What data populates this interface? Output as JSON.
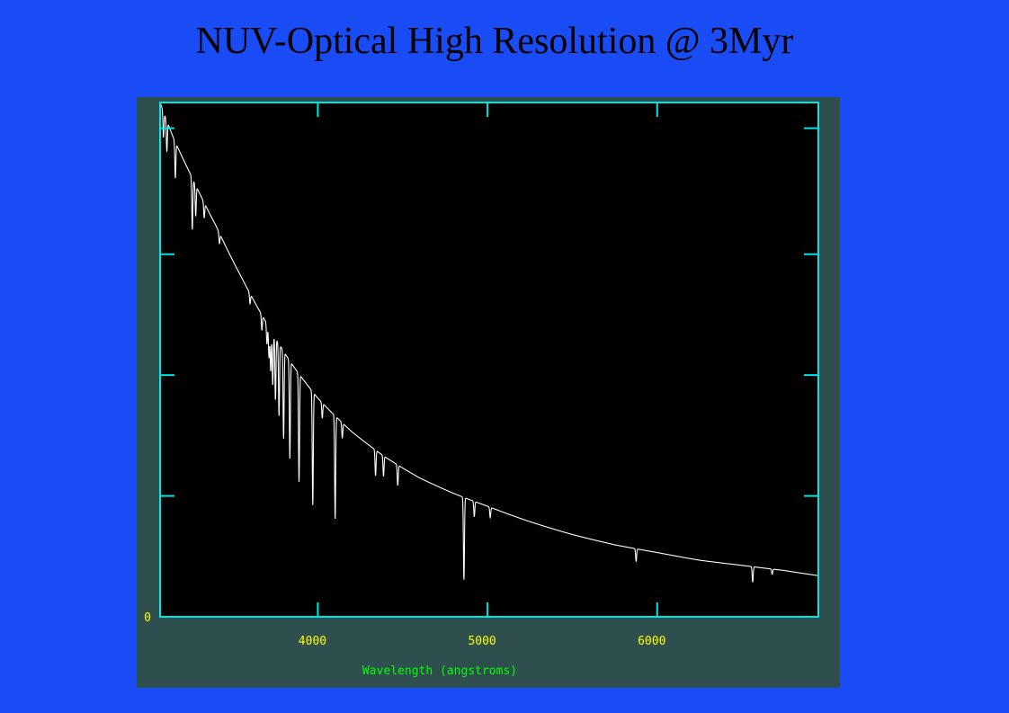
{
  "slide": {
    "title": "NUV-Optical High Resolution @ 3Myr"
  },
  "colors": {
    "background": "#1a4cf5",
    "panel": "#2f4f4f",
    "plot_area": "#000000",
    "frame": "#00e5e5",
    "spectrum": "#ffffff",
    "tick_labels": "#ffff00",
    "axis_label": "#00ff00"
  },
  "chart_data": {
    "type": "line",
    "title": "",
    "xlabel": "Wavelength (angstroms)",
    "ylabel": "",
    "xlim": [
      3070,
      6950
    ],
    "ylim": [
      0,
      1.0
    ],
    "x_ticks": [
      4000,
      5000,
      6000
    ],
    "x_tick_labels": [
      "4000",
      "5000",
      "6000"
    ],
    "y_tick_labels": [
      {
        "value": 0,
        "label": "0"
      }
    ],
    "y_minor_ticks": [
      0.235,
      0.47,
      0.705,
      0.95
    ],
    "grid": false,
    "legend": "none",
    "series": [
      {
        "continuum": [
          [
            3070,
            1.0
          ],
          [
            3150,
            0.93
          ],
          [
            3250,
            0.86
          ],
          [
            3400,
            0.76
          ],
          [
            3550,
            0.66
          ],
          [
            3700,
            0.57
          ],
          [
            3850,
            0.49
          ],
          [
            4000,
            0.425
          ],
          [
            4200,
            0.36
          ],
          [
            4400,
            0.31
          ],
          [
            4600,
            0.27
          ],
          [
            4800,
            0.24
          ],
          [
            5000,
            0.215
          ],
          [
            5250,
            0.185
          ],
          [
            5500,
            0.16
          ],
          [
            5750,
            0.14
          ],
          [
            6000,
            0.125
          ],
          [
            6250,
            0.11
          ],
          [
            6500,
            0.1
          ],
          [
            6750,
            0.09
          ],
          [
            6950,
            0.08
          ]
        ],
        "absorption_lines": [
          {
            "x": 3090,
            "depth": 0.05
          },
          {
            "x": 3110,
            "depth": 0.06
          },
          {
            "x": 3160,
            "depth": 0.07
          },
          {
            "x": 3260,
            "depth": 0.1
          },
          {
            "x": 3280,
            "depth": 0.06
          },
          {
            "x": 3330,
            "depth": 0.03
          },
          {
            "x": 3420,
            "depth": 0.02
          },
          {
            "x": 3600,
            "depth": 0.02
          },
          {
            "x": 3670,
            "depth": 0.03
          },
          {
            "x": 3700,
            "depth": 0.04
          },
          {
            "x": 3712,
            "depth": 0.06
          },
          {
            "x": 3722,
            "depth": 0.08
          },
          {
            "x": 3734,
            "depth": 0.1
          },
          {
            "x": 3750,
            "depth": 0.12
          },
          {
            "x": 3771,
            "depth": 0.14
          },
          {
            "x": 3798,
            "depth": 0.17
          },
          {
            "x": 3835,
            "depth": 0.19
          },
          {
            "x": 3889,
            "depth": 0.21
          },
          {
            "x": 3970,
            "depth": 0.22
          },
          {
            "x": 4026,
            "depth": 0.03
          },
          {
            "x": 4102,
            "depth": 0.2
          },
          {
            "x": 4144,
            "depth": 0.03
          },
          {
            "x": 4340,
            "depth": 0.05
          },
          {
            "x": 4387,
            "depth": 0.04
          },
          {
            "x": 4471,
            "depth": 0.04
          },
          {
            "x": 4861,
            "depth": 0.16
          },
          {
            "x": 4922,
            "depth": 0.03
          },
          {
            "x": 5016,
            "depth": 0.02
          },
          {
            "x": 5876,
            "depth": 0.025
          },
          {
            "x": 6563,
            "depth": 0.03
          },
          {
            "x": 6678,
            "depth": 0.01
          }
        ]
      }
    ]
  }
}
